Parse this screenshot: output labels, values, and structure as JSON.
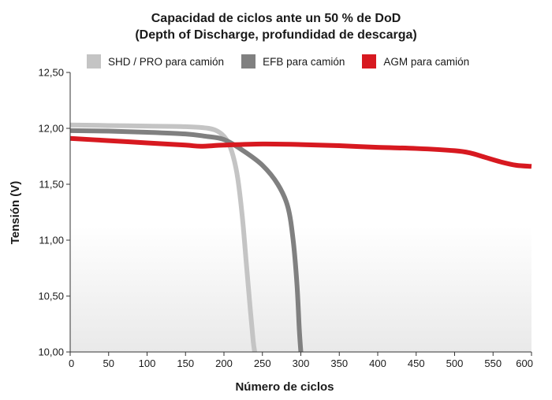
{
  "chart_data": {
    "type": "line",
    "title": [
      "Capacidad de ciclos ante un 50 % de DoD",
      "(Depth of Discharge, profundidad de descarga)"
    ],
    "xlabel": "Número de ciclos",
    "ylabel": "Tensión (V)",
    "xlim": [
      0,
      600
    ],
    "ylim": [
      10.0,
      12.5
    ],
    "xticks": [
      0,
      50,
      100,
      150,
      200,
      250,
      300,
      350,
      400,
      450,
      500,
      550,
      600
    ],
    "xtick_labels": [
      "0",
      "50",
      "100",
      "150",
      "200",
      "250",
      "300",
      "350",
      "400",
      "450",
      "500",
      "550",
      "600"
    ],
    "yticks": [
      10.0,
      10.5,
      11.0,
      11.5,
      12.0,
      12.5
    ],
    "ytick_labels": [
      "10,00",
      "10,50",
      "11,00",
      "11,50",
      "12,00",
      "12,50"
    ],
    "legend_position": "top",
    "series": [
      {
        "name": "SHD / PRO para camión",
        "color": "#c4c4c4",
        "points": [
          [
            0,
            12.03
          ],
          [
            50,
            12.025
          ],
          [
            100,
            12.02
          ],
          [
            150,
            12.015
          ],
          [
            180,
            12.0
          ],
          [
            195,
            11.96
          ],
          [
            205,
            11.88
          ],
          [
            212,
            11.75
          ],
          [
            218,
            11.55
          ],
          [
            224,
            11.2
          ],
          [
            229,
            10.8
          ],
          [
            234,
            10.4
          ],
          [
            238,
            10.1
          ],
          [
            240,
            10.0
          ]
        ]
      },
      {
        "name": "EFB para camión",
        "color": "#808080",
        "points": [
          [
            0,
            11.98
          ],
          [
            50,
            11.975
          ],
          [
            100,
            11.965
          ],
          [
            150,
            11.95
          ],
          [
            175,
            11.93
          ],
          [
            200,
            11.9
          ],
          [
            225,
            11.8
          ],
          [
            250,
            11.67
          ],
          [
            270,
            11.5
          ],
          [
            283,
            11.3
          ],
          [
            290,
            11.0
          ],
          [
            295,
            10.6
          ],
          [
            298,
            10.2
          ],
          [
            300,
            10.0
          ]
        ]
      },
      {
        "name": "AGM para camión",
        "color": "#d71920",
        "points": [
          [
            0,
            11.91
          ],
          [
            50,
            11.89
          ],
          [
            100,
            11.87
          ],
          [
            150,
            11.85
          ],
          [
            170,
            11.84
          ],
          [
            200,
            11.85
          ],
          [
            250,
            11.86
          ],
          [
            300,
            11.855
          ],
          [
            350,
            11.845
          ],
          [
            400,
            11.83
          ],
          [
            450,
            11.82
          ],
          [
            500,
            11.8
          ],
          [
            520,
            11.78
          ],
          [
            540,
            11.74
          ],
          [
            560,
            11.7
          ],
          [
            580,
            11.67
          ],
          [
            600,
            11.66
          ]
        ]
      }
    ]
  }
}
